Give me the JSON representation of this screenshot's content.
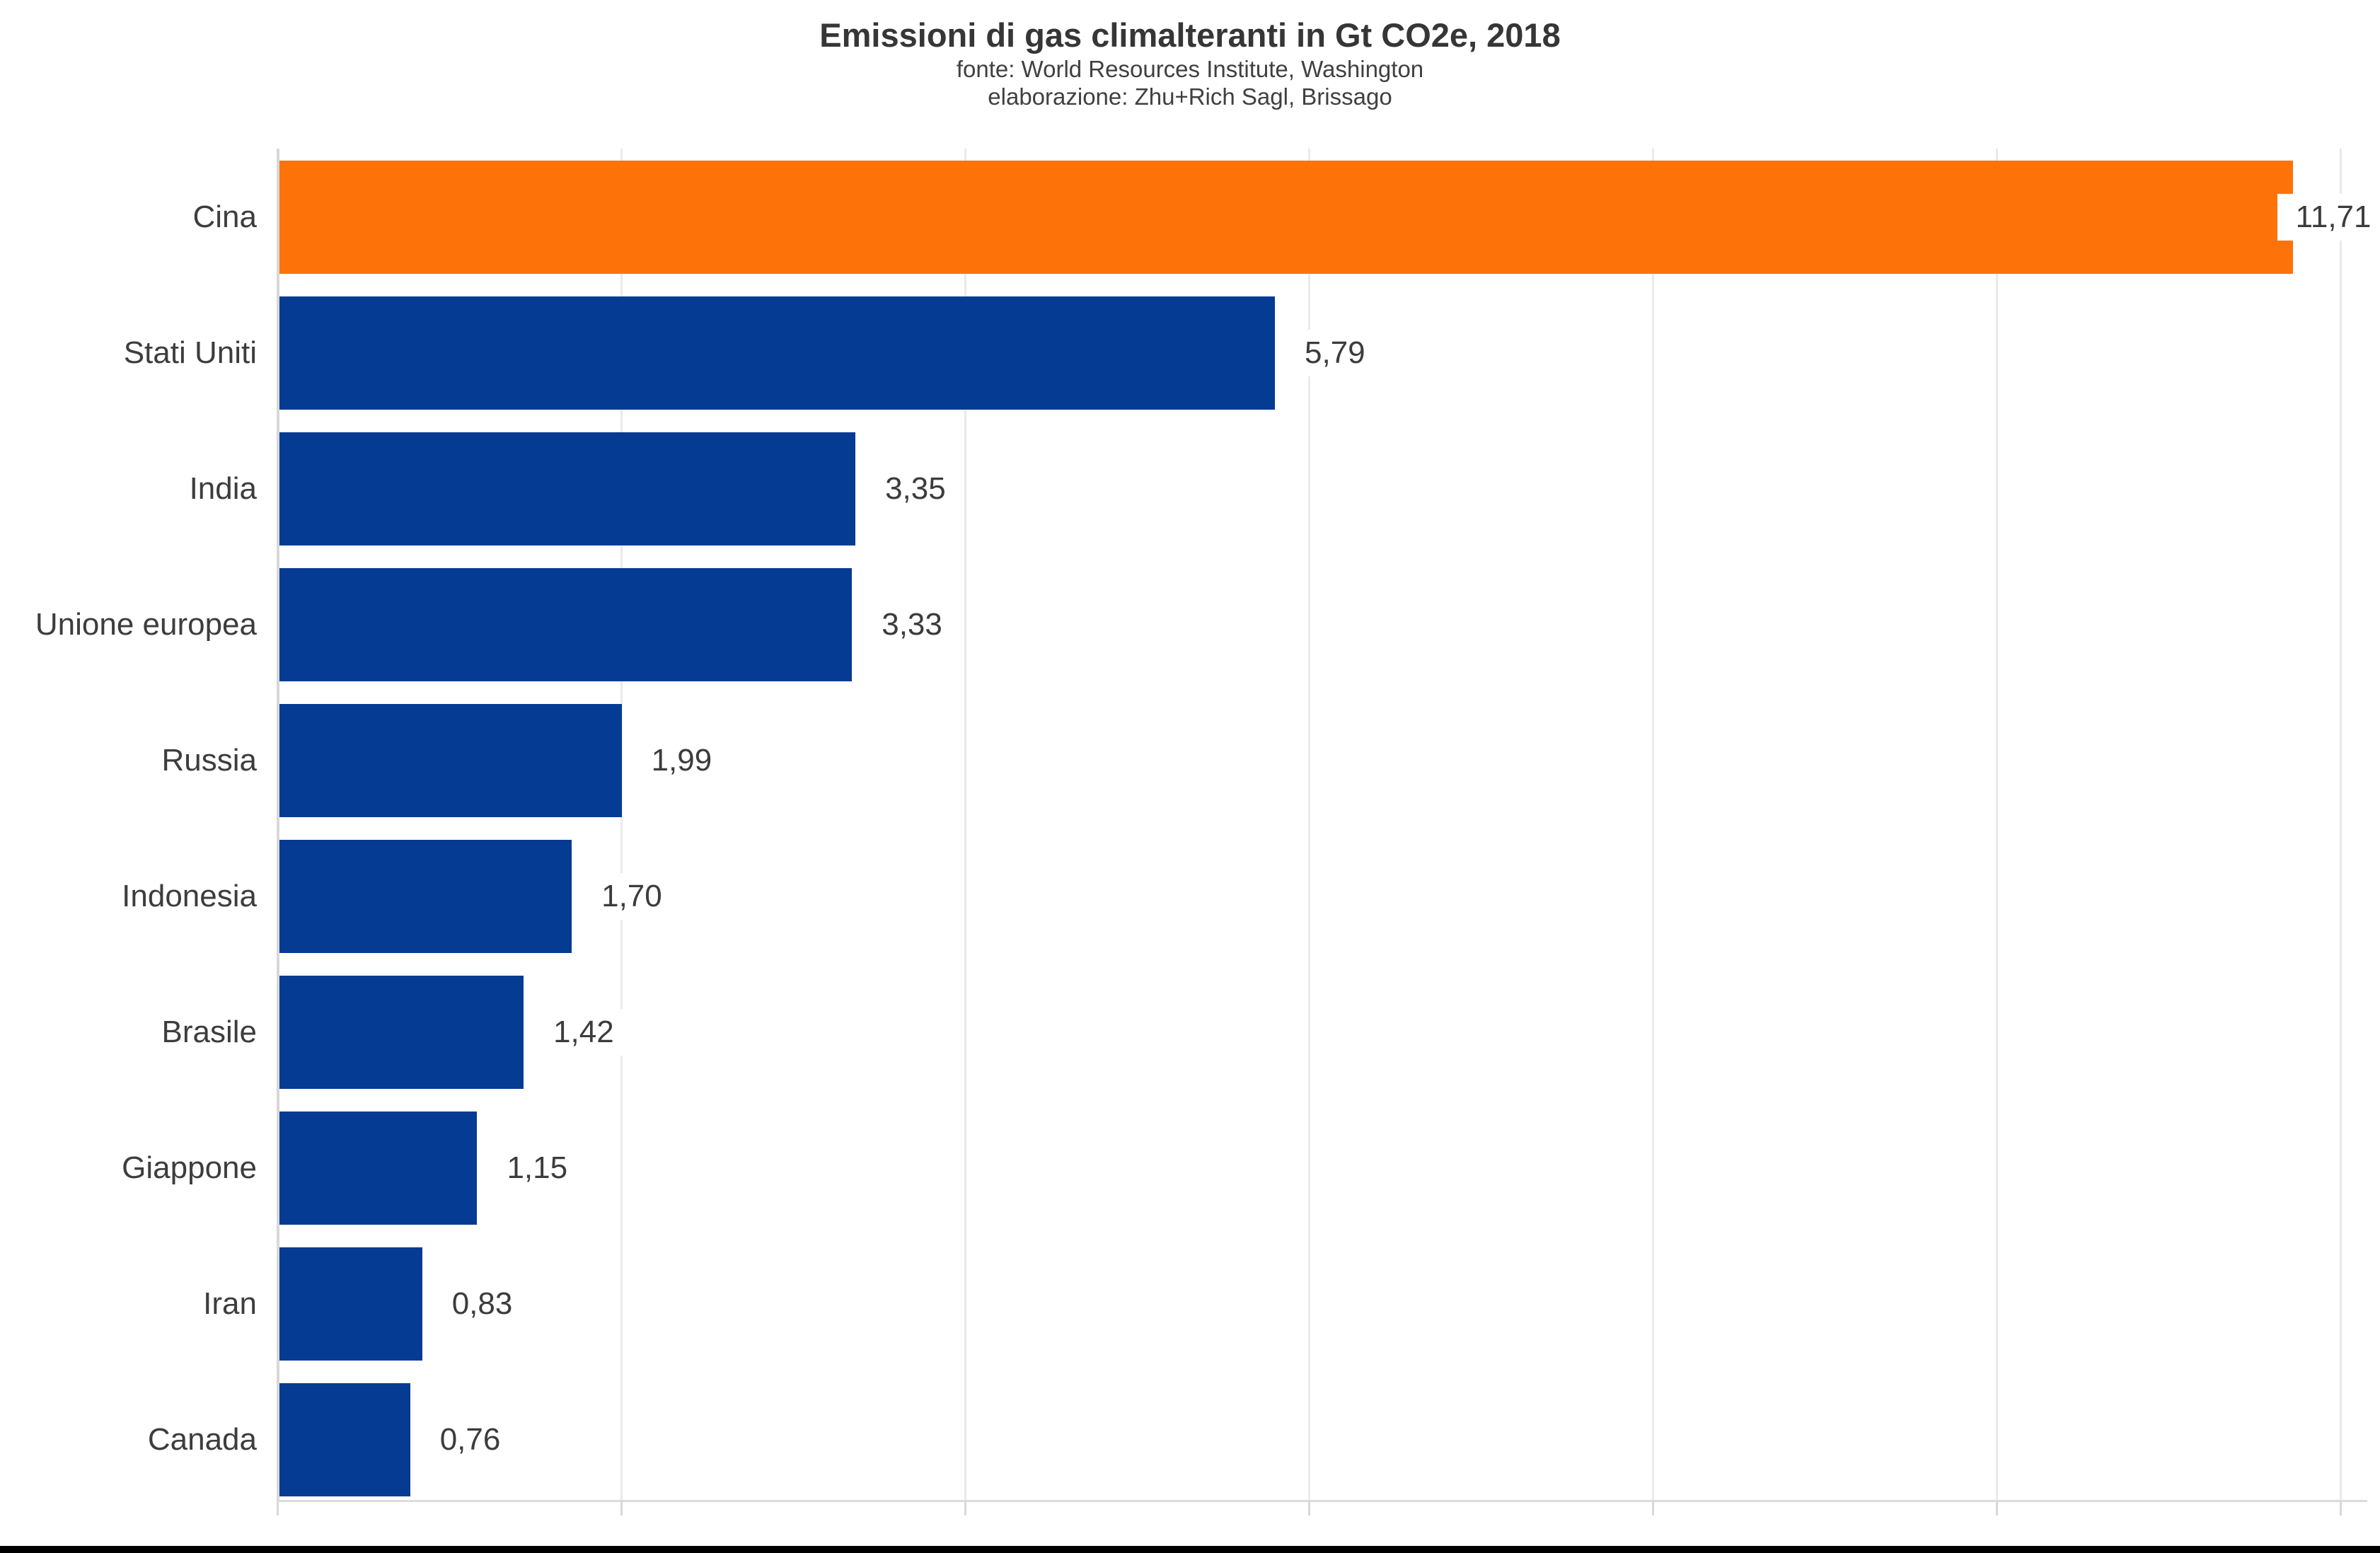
{
  "chart_data": {
    "type": "bar",
    "orientation": "horizontal",
    "title": "Emissioni di gas climalteranti in Gt CO2e, 2018",
    "subtitle_source": "fonte: World Resources Institute, Washington",
    "subtitle_attribution": "elaborazione: Zhu+Rich Sagl, Brissago",
    "unit": "Gt CO2e",
    "categories": [
      "Cina",
      "Stati Uniti",
      "India",
      "Unione europea",
      "Russia",
      "Indonesia",
      "Brasile",
      "Giappone",
      "Iran",
      "Canada"
    ],
    "values": [
      11.71,
      5.79,
      3.35,
      3.33,
      1.99,
      1.7,
      1.42,
      1.15,
      0.83,
      0.76
    ],
    "value_labels": [
      "11,71",
      "5,79",
      "3,35",
      "3,33",
      "1,99",
      "1,70",
      "1,42",
      "1,15",
      "0,83",
      "0,76"
    ],
    "highlight_category": "Cina",
    "bar_color": "#053b92",
    "highlight_color": "#fd730a",
    "label_color": "#3d3d3d",
    "grid": true,
    "legend": false,
    "xlim": [
      0,
      12.16
    ],
    "grid_step": 2,
    "x_tick_labels_visible": false
  }
}
